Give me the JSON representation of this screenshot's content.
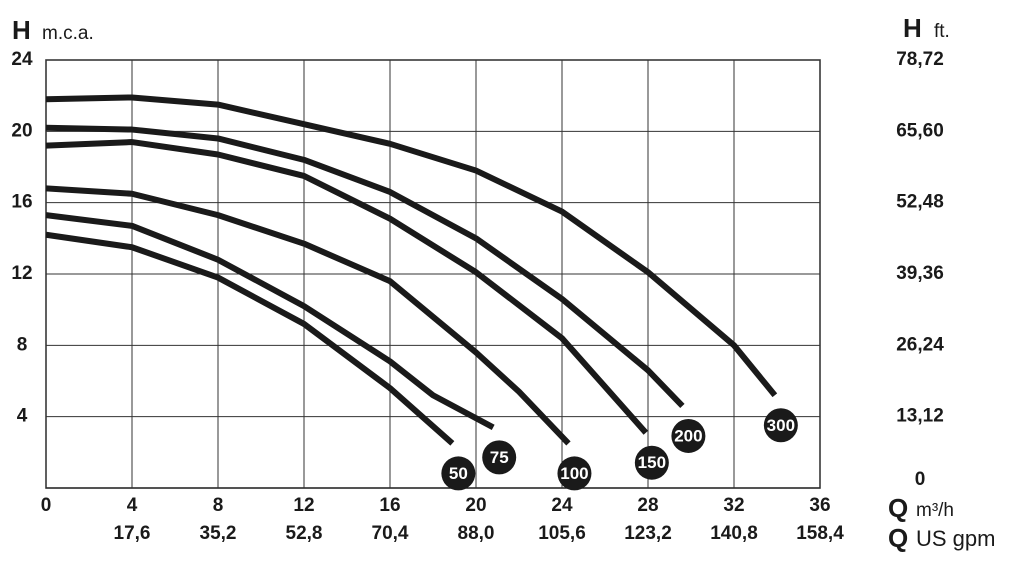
{
  "chart_data": {
    "type": "line",
    "y_label": {
      "symbol": "H",
      "unit": "m.c.a."
    },
    "y2_label": {
      "symbol": "H",
      "unit": "ft."
    },
    "x_label": {
      "symbol": "Q",
      "unit": "m³/h"
    },
    "x2_label": {
      "symbol": "Q",
      "unit": "US gpm"
    },
    "xlim": [
      0,
      36
    ],
    "xticks": [
      0,
      4,
      8,
      12,
      16,
      20,
      24,
      28,
      32,
      36
    ],
    "x2lim": [
      0,
      158.4
    ],
    "x2ticks": [
      {
        "value": 17.6,
        "label": "17,6"
      },
      {
        "value": 35.2,
        "label": "35,2"
      },
      {
        "value": 52.8,
        "label": "52,8"
      },
      {
        "value": 70.4,
        "label": "70,4"
      },
      {
        "value": 88.0,
        "label": "88,0"
      },
      {
        "value": 105.6,
        "label": "105,6"
      },
      {
        "value": 123.2,
        "label": "123,2"
      },
      {
        "value": 140.8,
        "label": "140,8"
      },
      {
        "value": 158.4,
        "label": "158,4"
      }
    ],
    "ylim": [
      0,
      24
    ],
    "yticks": [
      4,
      8,
      12,
      16,
      20,
      24
    ],
    "y2lim": [
      0,
      78.72
    ],
    "y2ticks": [
      0,
      {
        "value": 13.12,
        "label": "13,12"
      },
      {
        "value": 26.24,
        "label": "26,24"
      },
      {
        "value": 39.36,
        "label": "39,36"
      },
      {
        "value": 52.48,
        "label": "52,48"
      },
      {
        "value": 65.6,
        "label": "65,60"
      },
      {
        "value": 78.72,
        "label": "78,72"
      }
    ],
    "grid": true,
    "series": [
      {
        "name": "50",
        "color": "#1a1a1a",
        "x": [
          0,
          4,
          8,
          12,
          16,
          18.9
        ],
        "values": [
          14.2,
          13.5,
          11.8,
          9.2,
          5.6,
          2.5
        ]
      },
      {
        "name": "75",
        "color": "#1a1a1a",
        "x": [
          0,
          4,
          8,
          12,
          16,
          18,
          20.8
        ],
        "values": [
          15.3,
          14.7,
          12.8,
          10.2,
          7.1,
          5.2,
          3.4
        ]
      },
      {
        "name": "100",
        "color": "#1a1a1a",
        "x": [
          0,
          4,
          8,
          12,
          16,
          20,
          22,
          24.3
        ],
        "values": [
          16.8,
          16.5,
          15.3,
          13.7,
          11.6,
          7.6,
          5.4,
          2.5
        ]
      },
      {
        "name": "150",
        "color": "#1a1a1a",
        "x": [
          0,
          4,
          8,
          12,
          16,
          20,
          24,
          27.9
        ],
        "values": [
          19.2,
          19.4,
          18.7,
          17.5,
          15.1,
          12.1,
          8.4,
          3.1
        ]
      },
      {
        "name": "200",
        "color": "#1a1a1a",
        "x": [
          0,
          4,
          8,
          12,
          16,
          20,
          24,
          28,
          29.6
        ],
        "values": [
          20.2,
          20.1,
          19.6,
          18.4,
          16.6,
          14.0,
          10.6,
          6.6,
          4.6
        ]
      },
      {
        "name": "300",
        "color": "#1a1a1a",
        "x": [
          0,
          4,
          8,
          12,
          16,
          20,
          24,
          28,
          32,
          33.9
        ],
        "values": [
          21.8,
          21.9,
          21.5,
          20.4,
          19.3,
          17.8,
          15.5,
          12.1,
          8.0,
          5.2
        ]
      }
    ]
  }
}
